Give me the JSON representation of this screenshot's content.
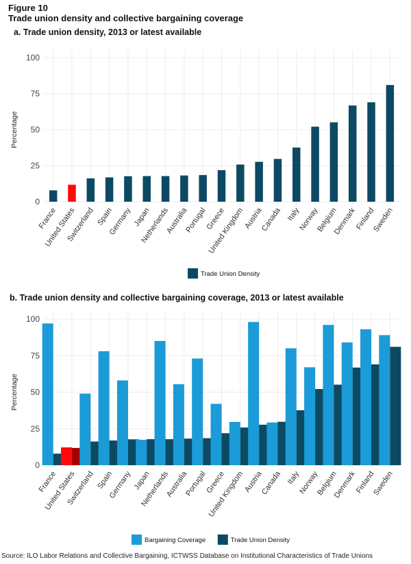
{
  "figure": {
    "number": "Figure 10",
    "title": "Trade union density and collective bargaining coverage",
    "source": "Source: ILO Labor Relations and Collective Bargaining, ICTWSS Database on Institutional Characteristics of Trade Unions"
  },
  "colors": {
    "density": "#0c4a63",
    "coverage": "#1b9bd7",
    "highlight_coverage": "#ff0a0a",
    "highlight_density": "#a30000",
    "grid": "#ececec"
  },
  "chart_data": [
    {
      "type": "bar",
      "title": "a.  Trade union density, 2013 or latest available",
      "xlabel": "",
      "ylabel": "Percentage",
      "ylim": [
        0,
        100
      ],
      "yticks": [
        0,
        25,
        50,
        75,
        100
      ],
      "grid": true,
      "legend": "bottom-center",
      "highlight": "United States",
      "categories": [
        "France",
        "United States",
        "Switzerland",
        "Spain",
        "Germany",
        "Japan",
        "Netherlands",
        "Australia",
        "Portugal",
        "Greece",
        "United Kingdom",
        "Austria",
        "Canada",
        "Italy",
        "Norway",
        "Belgium",
        "Denmark",
        "Finland",
        "Sweden"
      ],
      "series": [
        {
          "name": "Trade Union Density",
          "values": [
            7.9,
            11.8,
            16.2,
            16.9,
            17.7,
            17.8,
            17.8,
            18.2,
            18.5,
            21.9,
            25.8,
            27.7,
            29.7,
            37.6,
            52.1,
            55.1,
            66.8,
            69.0,
            81.0
          ]
        }
      ]
    },
    {
      "type": "bar",
      "title": "b. Trade union density and collective bargaining coverage, 2013 or latest available",
      "xlabel": "",
      "ylabel": "Percentage",
      "ylim": [
        0,
        100
      ],
      "yticks": [
        0,
        25,
        50,
        75,
        100
      ],
      "grid": true,
      "legend": "bottom-center",
      "highlight": "United States",
      "categories": [
        "France",
        "United States",
        "Switzerland",
        "Spain",
        "Germany",
        "Japan",
        "Netherlands",
        "Australia",
        "Portugal",
        "Greece",
        "United Kingdom",
        "Austria",
        "Canada",
        "Italy",
        "Norway",
        "Belgium",
        "Denmark",
        "Finland",
        "Sweden"
      ],
      "series": [
        {
          "name": "Bargaining Coverage",
          "values": [
            97,
            12.2,
            49,
            78,
            58,
            17.4,
            85,
            55.4,
            73,
            42,
            29.6,
            98,
            29.2,
            80,
            67,
            96,
            84,
            93,
            89
          ]
        },
        {
          "name": "Trade Union Density",
          "values": [
            7.9,
            11.8,
            16.2,
            16.9,
            17.7,
            17.8,
            17.8,
            18.2,
            18.5,
            21.9,
            25.8,
            27.7,
            29.7,
            37.6,
            52.1,
            55.1,
            66.8,
            69.0,
            81.0
          ]
        }
      ]
    }
  ]
}
